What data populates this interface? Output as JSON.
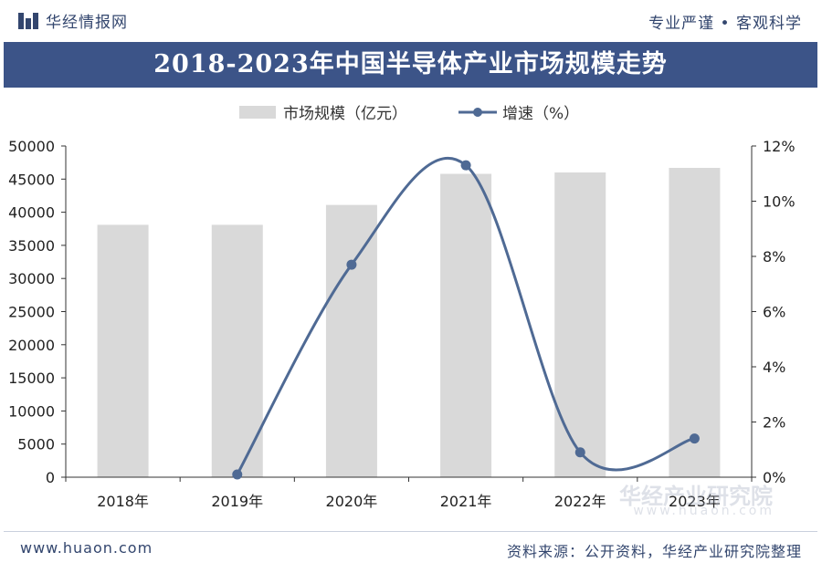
{
  "header": {
    "brand": "华经情报网",
    "slogan": "专业严谨 • 客观科学"
  },
  "chart_data": {
    "type": "bar",
    "title": "2018-2023年中国半导体产业市场规模走势",
    "categories": [
      "2018年",
      "2019年",
      "2020年",
      "2021年",
      "2022年",
      "2023年"
    ],
    "series": [
      {
        "name": "市场规模（亿元）",
        "type": "bar",
        "axis": "left",
        "values": [
          38100,
          38100,
          41100,
          45800,
          46000,
          46700
        ],
        "color": "#d9d9d9"
      },
      {
        "name": "增速（%）",
        "type": "line",
        "axis": "right",
        "values": [
          null,
          0.1,
          7.7,
          11.3,
          0.9,
          1.4
        ],
        "color": "#4f6a94"
      }
    ],
    "y_left": {
      "min": 0,
      "max": 50000,
      "step": 5000,
      "ticks": [
        "0",
        "5000",
        "10000",
        "15000",
        "20000",
        "25000",
        "30000",
        "35000",
        "40000",
        "45000",
        "50000"
      ]
    },
    "y_right": {
      "min": 0,
      "max": 12,
      "step": 2,
      "ticks": [
        "0%",
        "2%",
        "4%",
        "6%",
        "8%",
        "10%",
        "12%"
      ]
    },
    "grid": false,
    "legend_position": "top"
  },
  "watermark": {
    "name": "华经产业研究院",
    "url": "www.huaon.com"
  },
  "footer": {
    "website": "www.huaon.com",
    "source": "资料来源：公开资料，华经产业研究院整理"
  },
  "colors": {
    "title_bg": "#3c5488",
    "brand": "#33466e",
    "bar": "#d9d9d9",
    "line": "#4f6a94"
  }
}
